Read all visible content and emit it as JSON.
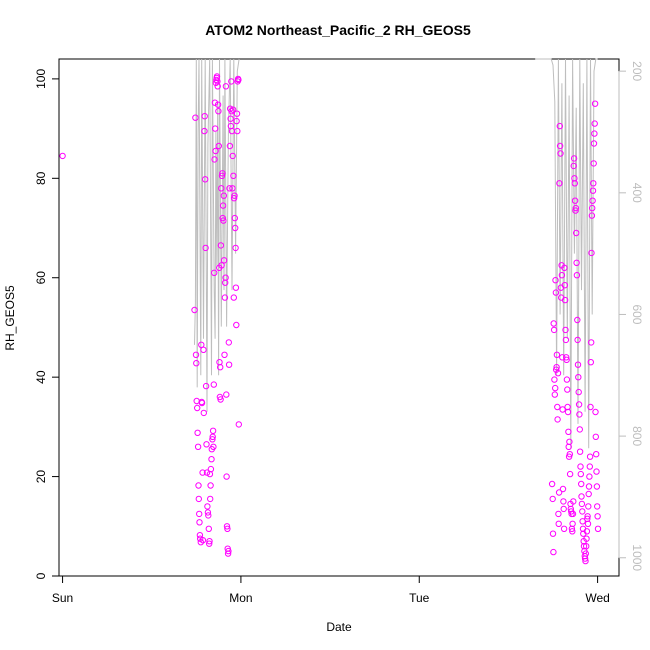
{
  "chart_data": {
    "type": "scatter",
    "title": "ATOM2 Northeast_Pacific_2 RH_GEOS5",
    "xlabel": "Date",
    "ylabel": "RH_GEOS5",
    "xlim": [
      -0.02,
      3.12
    ],
    "ylim": [
      0,
      104
    ],
    "x_ticks": [
      {
        "value": 0,
        "label": "Sun"
      },
      {
        "value": 1,
        "label": "Mon"
      },
      {
        "value": 2,
        "label": "Tue"
      },
      {
        "value": 3,
        "label": "Wed"
      }
    ],
    "y_ticks": [
      0,
      20,
      40,
      60,
      80,
      100
    ],
    "y2_ticks": [
      200,
      400,
      600,
      800,
      1000
    ],
    "y2_reversed": true,
    "y2_range": [
      180,
      1030
    ],
    "series": [
      {
        "marker": "open-circle",
        "color": "#ff00ff",
        "points": [
          [
            0.0,
            84.5
          ],
          [
            0.74,
            53.5
          ],
          [
            0.745,
            92.2
          ],
          [
            0.748,
            44.5
          ],
          [
            0.75,
            42.8
          ],
          [
            0.752,
            35.2
          ],
          [
            0.755,
            33.8
          ],
          [
            0.757,
            28.8
          ],
          [
            0.76,
            26.0
          ],
          [
            0.762,
            18.2
          ],
          [
            0.764,
            15.5
          ],
          [
            0.766,
            12.5
          ],
          [
            0.768,
            10.8
          ],
          [
            0.77,
            8.2
          ],
          [
            0.772,
            7.5
          ],
          [
            0.775,
            6.8
          ],
          [
            0.778,
            46.5
          ],
          [
            0.78,
            35.0
          ],
          [
            0.782,
            34.8
          ],
          [
            0.785,
            20.8
          ],
          [
            0.787,
            7.2
          ],
          [
            0.79,
            45.5
          ],
          [
            0.792,
            32.8
          ],
          [
            0.795,
            89.5
          ],
          [
            0.797,
            92.5
          ],
          [
            0.8,
            79.8
          ],
          [
            0.802,
            66.0
          ],
          [
            0.805,
            38.2
          ],
          [
            0.807,
            26.5
          ],
          [
            0.81,
            20.8
          ],
          [
            0.812,
            14.0
          ],
          [
            0.815,
            12.8
          ],
          [
            0.817,
            12.2
          ],
          [
            0.82,
            9.5
          ],
          [
            0.822,
            6.5
          ],
          [
            0.824,
            7.0
          ],
          [
            0.826,
            20.5
          ],
          [
            0.828,
            15.5
          ],
          [
            0.83,
            18.2
          ],
          [
            0.832,
            21.5
          ],
          [
            0.835,
            23.5
          ],
          [
            0.837,
            25.5
          ],
          [
            0.84,
            27.5
          ],
          [
            0.842,
            28.0
          ],
          [
            0.844,
            29.2
          ],
          [
            0.846,
            26.0
          ],
          [
            0.848,
            38.5
          ],
          [
            0.85,
            61.0
          ],
          [
            0.852,
            83.8
          ],
          [
            0.854,
            95.2
          ],
          [
            0.856,
            90.0
          ],
          [
            0.858,
            85.5
          ],
          [
            0.86,
            99.2
          ],
          [
            0.862,
            99.8
          ],
          [
            0.864,
            100.2
          ],
          [
            0.866,
            100.5
          ],
          [
            0.868,
            99.5
          ],
          [
            0.87,
            98.5
          ],
          [
            0.872,
            94.8
          ],
          [
            0.874,
            93.5
          ],
          [
            0.876,
            86.5
          ],
          [
            0.878,
            62.0
          ],
          [
            0.88,
            43.0
          ],
          [
            0.882,
            36.0
          ],
          [
            0.884,
            42.0
          ],
          [
            0.886,
            35.5
          ],
          [
            0.888,
            66.5
          ],
          [
            0.89,
            78.0
          ],
          [
            0.892,
            62.5
          ],
          [
            0.894,
            80.5
          ],
          [
            0.896,
            81.0
          ],
          [
            0.898,
            72.0
          ],
          [
            0.9,
            74.5
          ],
          [
            0.902,
            71.5
          ],
          [
            0.904,
            76.5
          ],
          [
            0.906,
            63.5
          ],
          [
            0.908,
            44.5
          ],
          [
            0.91,
            56.0
          ],
          [
            0.912,
            59.0
          ],
          [
            0.914,
            60.0
          ],
          [
            0.916,
            98.5
          ],
          [
            0.918,
            36.5
          ],
          [
            0.92,
            20.0
          ],
          [
            0.922,
            10.0
          ],
          [
            0.924,
            9.5
          ],
          [
            0.926,
            5.5
          ],
          [
            0.928,
            4.5
          ],
          [
            0.93,
            5.0
          ],
          [
            0.932,
            47.0
          ],
          [
            0.934,
            42.5
          ],
          [
            0.936,
            78.0
          ],
          [
            0.938,
            86.5
          ],
          [
            0.94,
            94.0
          ],
          [
            0.942,
            92.0
          ],
          [
            0.944,
            90.5
          ],
          [
            0.946,
            99.5
          ],
          [
            0.948,
            93.5
          ],
          [
            0.95,
            89.5
          ],
          [
            0.952,
            78.0
          ],
          [
            0.954,
            84.5
          ],
          [
            0.956,
            93.8
          ],
          [
            0.958,
            80.5
          ],
          [
            0.96,
            56.0
          ],
          [
            0.962,
            76.0
          ],
          [
            0.964,
            76.5
          ],
          [
            0.966,
            72.0
          ],
          [
            0.968,
            70.0
          ],
          [
            0.97,
            66.0
          ],
          [
            0.972,
            58.0
          ],
          [
            0.974,
            50.5
          ],
          [
            0.976,
            91.5
          ],
          [
            0.978,
            93.0
          ],
          [
            0.98,
            89.5
          ],
          [
            0.982,
            99.5
          ],
          [
            0.984,
            100.0
          ],
          [
            0.986,
            99.8
          ],
          [
            0.988,
            30.5
          ],
          [
            2.745,
            18.5
          ],
          [
            2.748,
            15.5
          ],
          [
            2.75,
            8.5
          ],
          [
            2.752,
            4.8
          ],
          [
            2.754,
            50.8
          ],
          [
            2.756,
            49.5
          ],
          [
            2.758,
            39.5
          ],
          [
            2.76,
            36.5
          ],
          [
            2.762,
            37.8
          ],
          [
            2.764,
            59.5
          ],
          [
            2.766,
            57.0
          ],
          [
            2.768,
            41.5
          ],
          [
            2.77,
            42.0
          ],
          [
            2.772,
            44.5
          ],
          [
            2.774,
            34.0
          ],
          [
            2.776,
            31.5
          ],
          [
            2.778,
            40.8
          ],
          [
            2.78,
            12.5
          ],
          [
            2.782,
            10.5
          ],
          [
            2.784,
            16.8
          ],
          [
            2.786,
            79.0
          ],
          [
            2.788,
            90.5
          ],
          [
            2.79,
            86.5
          ],
          [
            2.792,
            85.0
          ],
          [
            2.794,
            58.0
          ],
          [
            2.796,
            56.0
          ],
          [
            2.798,
            62.5
          ],
          [
            2.8,
            60.5
          ],
          [
            2.802,
            44.0
          ],
          [
            2.804,
            33.5
          ],
          [
            2.806,
            17.5
          ],
          [
            2.808,
            15.0
          ],
          [
            2.81,
            13.5
          ],
          [
            2.812,
            9.5
          ],
          [
            2.814,
            62.0
          ],
          [
            2.816,
            58.5
          ],
          [
            2.818,
            55.5
          ],
          [
            2.82,
            49.5
          ],
          [
            2.822,
            47.5
          ],
          [
            2.824,
            44.0
          ],
          [
            2.826,
            43.5
          ],
          [
            2.828,
            39.5
          ],
          [
            2.83,
            37.5
          ],
          [
            2.832,
            34.0
          ],
          [
            2.834,
            33.0
          ],
          [
            2.836,
            29.0
          ],
          [
            2.838,
            26.0
          ],
          [
            2.84,
            24.0
          ],
          [
            2.842,
            27.0
          ],
          [
            2.844,
            24.5
          ],
          [
            2.846,
            20.5
          ],
          [
            2.848,
            14.5
          ],
          [
            2.85,
            13.5
          ],
          [
            2.852,
            13.0
          ],
          [
            2.854,
            12.5
          ],
          [
            2.856,
            9.5
          ],
          [
            2.858,
            9.0
          ],
          [
            2.86,
            10.5
          ],
          [
            2.862,
            12.5
          ],
          [
            2.864,
            15.0
          ],
          [
            2.866,
            82.5
          ],
          [
            2.868,
            84.0
          ],
          [
            2.87,
            80.0
          ],
          [
            2.872,
            79.0
          ],
          [
            2.874,
            75.5
          ],
          [
            2.876,
            73.5
          ],
          [
            2.878,
            74.0
          ],
          [
            2.88,
            69.0
          ],
          [
            2.882,
            63.0
          ],
          [
            2.884,
            60.5
          ],
          [
            2.886,
            51.5
          ],
          [
            2.888,
            47.5
          ],
          [
            2.89,
            42.5
          ],
          [
            2.892,
            40.0
          ],
          [
            2.894,
            37.0
          ],
          [
            2.896,
            34.5
          ],
          [
            2.898,
            32.5
          ],
          [
            2.9,
            29.5
          ],
          [
            2.902,
            25.0
          ],
          [
            2.904,
            22.0
          ],
          [
            2.906,
            20.5
          ],
          [
            2.908,
            18.5
          ],
          [
            2.91,
            16.0
          ],
          [
            2.912,
            14.5
          ],
          [
            2.914,
            13.0
          ],
          [
            2.916,
            11.0
          ],
          [
            2.918,
            9.5
          ],
          [
            2.92,
            8.5
          ],
          [
            2.922,
            7.0
          ],
          [
            2.924,
            6.0
          ],
          [
            2.926,
            5.0
          ],
          [
            2.928,
            4.0
          ],
          [
            2.93,
            3.5
          ],
          [
            2.932,
            3.0
          ],
          [
            2.934,
            4.5
          ],
          [
            2.936,
            6.0
          ],
          [
            2.938,
            7.5
          ],
          [
            2.94,
            9.0
          ],
          [
            2.942,
            11.5
          ],
          [
            2.944,
            12.0
          ],
          [
            2.946,
            10.5
          ],
          [
            2.948,
            14.0
          ],
          [
            2.95,
            16.5
          ],
          [
            2.952,
            18.0
          ],
          [
            2.954,
            20.0
          ],
          [
            2.956,
            22.0
          ],
          [
            2.958,
            24.0
          ],
          [
            2.96,
            34.0
          ],
          [
            2.962,
            43.0
          ],
          [
            2.964,
            47.0
          ],
          [
            2.966,
            65.0
          ],
          [
            2.968,
            72.5
          ],
          [
            2.97,
            74.0
          ],
          [
            2.972,
            75.5
          ],
          [
            2.974,
            77.5
          ],
          [
            2.976,
            79.0
          ],
          [
            2.978,
            83.0
          ],
          [
            2.98,
            87.0
          ],
          [
            2.982,
            89.0
          ],
          [
            2.984,
            91.0
          ],
          [
            2.986,
            95.0
          ],
          [
            2.988,
            33.0
          ],
          [
            2.99,
            28.0
          ],
          [
            2.992,
            24.5
          ],
          [
            2.994,
            21.0
          ],
          [
            2.996,
            18.0
          ],
          [
            2.998,
            14.0
          ],
          [
            3.0,
            12.0
          ],
          [
            3.002,
            9.5
          ]
        ]
      },
      {
        "marker": "line",
        "color": "#bebebe",
        "axis": "right",
        "x": [
          0.74,
          0.745,
          0.75,
          0.755,
          0.76,
          0.765,
          0.775,
          0.78,
          0.79,
          0.8,
          0.81,
          0.815,
          0.825,
          0.835,
          0.84,
          0.85,
          0.855,
          0.86,
          0.865,
          0.87,
          0.875,
          0.88,
          0.89,
          0.9,
          0.905,
          0.91,
          0.92,
          0.93,
          0.94,
          0.95,
          0.96,
          0.97,
          0.98,
          0.99,
          2.65,
          2.68,
          2.7,
          2.72,
          2.74,
          2.75,
          2.76,
          2.77,
          2.78,
          2.79,
          2.8,
          2.81,
          2.82,
          2.83,
          2.84,
          2.85,
          2.86,
          2.87,
          2.88,
          2.89,
          2.9,
          2.91,
          2.92,
          2.93,
          2.94,
          2.95,
          2.96,
          2.97,
          2.98,
          2.99,
          3.0
        ],
        "y": [
          650,
          580,
          180,
          720,
          300,
          180,
          700,
          180,
          640,
          180,
          760,
          320,
          180,
          700,
          180,
          560,
          640,
          300,
          520,
          250,
          700,
          180,
          620,
          240,
          560,
          180,
          620,
          300,
          180,
          560,
          180,
          500,
          200,
          180,
          180,
          180,
          180,
          180,
          180,
          190,
          250,
          700,
          180,
          600,
          220,
          700,
          180,
          640,
          240,
          820,
          180,
          500,
          260,
          780,
          180,
          560,
          220,
          760,
          180,
          820,
          180,
          600,
          200,
          180,
          180
        ]
      }
    ]
  }
}
